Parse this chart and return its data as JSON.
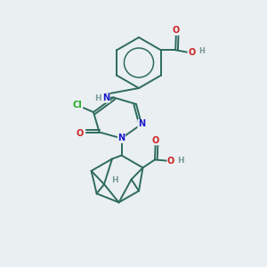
{
  "background_color": "#eaeff2",
  "bond_color": "#2d6b5e",
  "atom_colors": {
    "N": "#1a1acc",
    "O": "#cc2020",
    "Cl": "#22aa22",
    "H": "#7a9a9a",
    "C": "#2d6b5e"
  },
  "figsize": [
    3.0,
    3.0
  ],
  "dpi": 100
}
